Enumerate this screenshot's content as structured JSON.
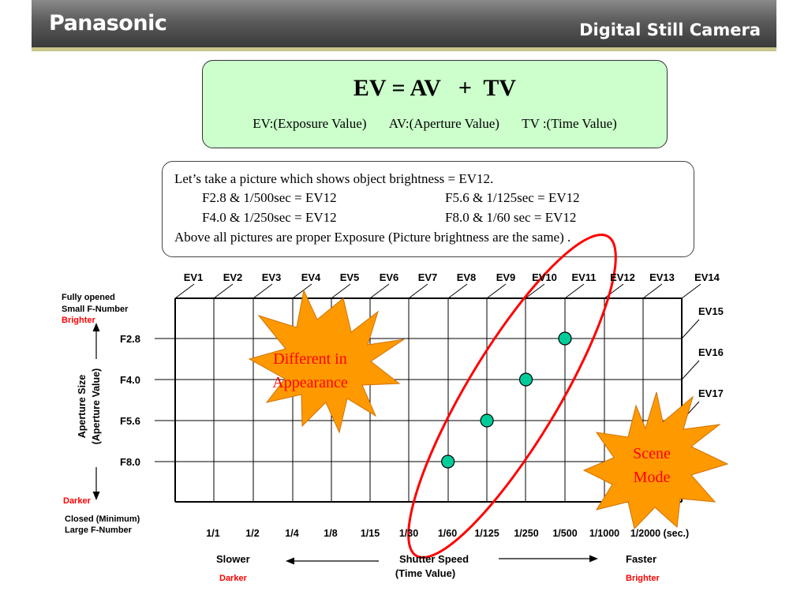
{
  "header": {
    "brand": "Panasonic",
    "product": "Digital Still Camera"
  },
  "formula": {
    "title": "EV = AV   +  TV",
    "ev_def": "EV:(Exposure Value)",
    "av_def": "AV:(Aperture Value)",
    "tv_def": "TV :(Time Value)"
  },
  "example": {
    "line1": "Let’s take a picture which shows object brightness = EV12.",
    "pair1_left": "F2.8 & 1/500sec  =  EV12",
    "pair1_right": "F5.6   &  1/125sec  = EV12",
    "pair2_left": "F4.0 & 1/250sec  =  EV12",
    "pair2_right": "F8.0   &   1/60 sec  = EV12",
    "line4": "Above all pictures are proper Exposure (Picture brightness are the same) ."
  },
  "ev_top_labels": [
    "EV1",
    "EV2",
    "EV3",
    "EV4",
    "EV5",
    "EV6",
    "EV7",
    "EV8",
    "EV9",
    "EV10",
    "EV11",
    "EV12",
    "EV13",
    "EV14"
  ],
  "ev_right_labels": [
    "EV15",
    "EV16",
    "EV17"
  ],
  "aperture_labels": [
    "F2.8",
    "F4.0",
    "F5.6",
    "F8.0"
  ],
  "shutter_labels": [
    "1/1",
    "1/2",
    "1/4",
    "1/8",
    "1/15",
    "1/30",
    "1/60",
    "1/125",
    "1/250",
    "1/500",
    "1/1000",
    "1/2000 (sec.)"
  ],
  "left_axis": {
    "top_line1": "Fully opened",
    "top_line2": "Small F-Number",
    "top_brighter": "Brighter",
    "title_line1": "Aperture Size",
    "title_line2": "(Aperture Value)",
    "bottom_darker": "Darker",
    "bottom_line1": "Closed (Minimum)",
    "bottom_line2": "Large  F-Number"
  },
  "bottom_axis": {
    "slower": "Slower",
    "slower_note": "Darker",
    "title_line1": "Shutter Speed",
    "title_line2": "(Time Value)",
    "faster": "Faster",
    "faster_note": "Brighter"
  },
  "callouts": {
    "different_line1": "Different in",
    "different_line2": "Appearance",
    "scene_line1": "Scene",
    "scene_line2": "Mode"
  },
  "colors": {
    "formula_fill": "#ccffcc",
    "point_fill": "#00cc99",
    "highlight_ellipse": "#ff0000",
    "starburst_fill": "#ff9900",
    "emphasis_text": "#ff0000"
  },
  "chart_data": {
    "type": "scatter",
    "x": [
      "1/60",
      "1/125",
      "1/250",
      "1/500"
    ],
    "y": [
      "F8.0",
      "F5.6",
      "F4.0",
      "F2.8"
    ],
    "highlight": "EV12"
  }
}
